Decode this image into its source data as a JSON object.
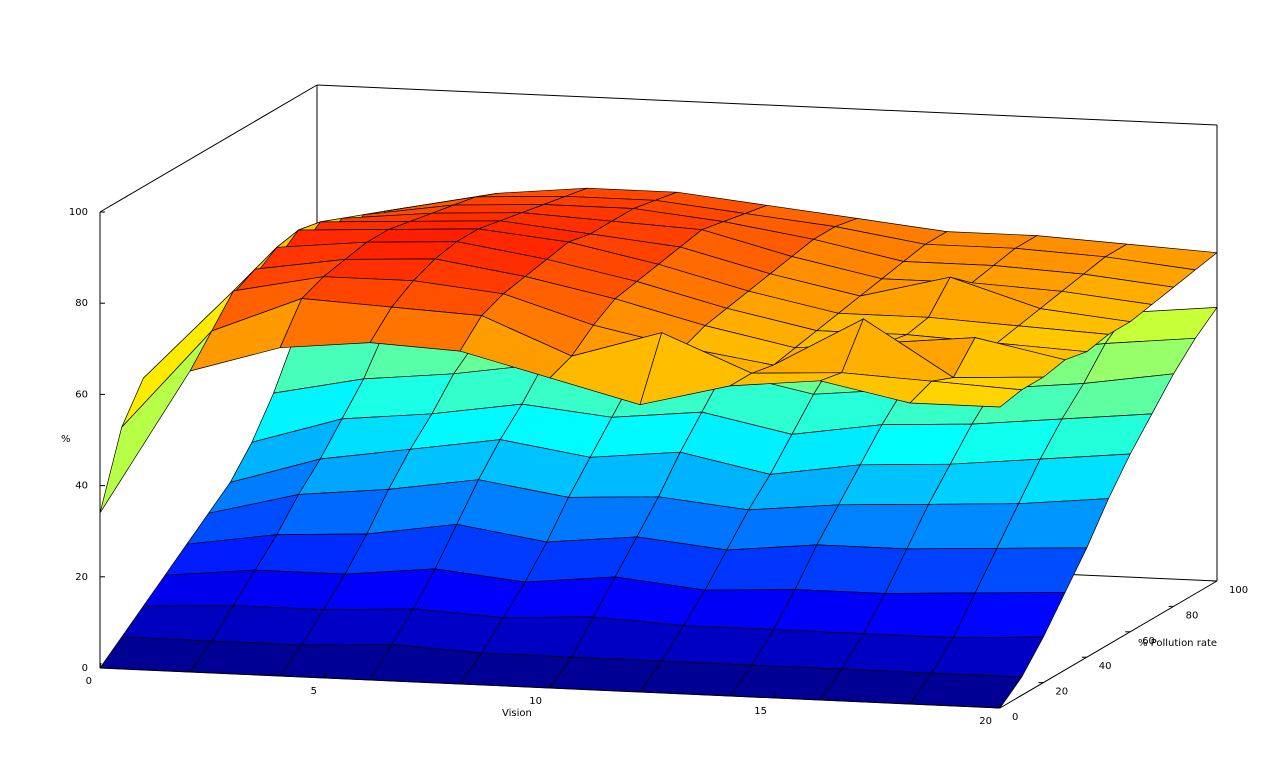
{
  "chart_data": {
    "type": "surface",
    "zlabel": "%",
    "xlabel": "Vision",
    "ylabel": "% Pollution rate",
    "xlim": [
      0,
      20
    ],
    "ylim": [
      0,
      100
    ],
    "zlim": [
      0,
      100
    ],
    "x_ticks": [
      "0",
      "5",
      "10",
      "15",
      "20"
    ],
    "y_ticks": [
      "0",
      "20",
      "40",
      "60",
      "80",
      "100"
    ],
    "z_ticks": [
      "0",
      "20",
      "40",
      "60",
      "80",
      "100"
    ],
    "x": [
      0,
      2,
      4,
      6,
      8,
      10,
      12,
      14,
      16,
      18,
      20
    ],
    "y": [
      0,
      10,
      20,
      30,
      40,
      50,
      60,
      70,
      80,
      90,
      100
    ],
    "series": [
      {
        "z": [
          [
            0,
            0,
            0,
            0,
            0,
            0,
            0,
            0,
            0,
            0,
            0
          ],
          [
            4,
            4,
            4,
            5,
            4,
            4,
            4,
            4,
            4,
            4,
            4
          ],
          [
            8,
            9,
            9,
            10,
            9,
            10,
            9,
            9,
            9,
            9,
            10
          ],
          [
            12,
            14,
            14,
            16,
            14,
            16,
            14,
            15,
            15,
            16,
            17
          ],
          [
            16,
            19,
            20,
            23,
            20,
            22,
            20,
            22,
            22,
            23,
            24
          ],
          [
            20,
            25,
            27,
            30,
            27,
            28,
            26,
            28,
            29,
            30,
            32
          ],
          [
            24,
            30,
            33,
            36,
            33,
            35,
            31,
            34,
            35,
            37,
            39
          ],
          [
            30,
            36,
            38,
            41,
            39,
            41,
            37,
            40,
            41,
            43,
            45
          ],
          [
            38,
            42,
            44,
            47,
            45,
            47,
            43,
            45,
            46,
            48,
            51
          ],
          [
            48,
            50,
            48,
            51,
            50,
            53,
            48,
            50,
            51,
            54,
            56
          ],
          [
            58,
            56,
            52,
            55,
            54,
            58,
            53,
            54,
            56,
            58,
            60
          ]
        ]
      },
      {
        "z": [
          [
            34,
            66,
            72,
            74,
            73,
            68,
            63,
            68,
            70,
            66,
            66
          ],
          [
            50,
            72,
            80,
            79,
            78,
            70,
            76,
            68,
            69,
            68,
            67
          ],
          [
            58,
            78,
            82,
            82,
            80,
            74,
            70,
            67,
            78,
            66,
            67
          ],
          [
            57,
            80,
            83,
            84,
            81,
            77,
            72,
            68,
            70,
            72,
            68
          ],
          [
            56,
            82,
            84,
            85,
            82,
            78,
            73,
            69,
            69,
            68,
            67
          ],
          [
            55,
            83,
            84,
            85,
            83,
            79,
            74,
            70,
            70,
            69,
            68
          ],
          [
            54,
            82,
            83,
            84,
            82,
            80,
            75,
            71,
            76,
            70,
            68
          ],
          [
            53,
            80,
            82,
            83,
            82,
            81,
            76,
            72,
            72,
            71,
            69
          ],
          [
            52,
            78,
            81,
            82,
            82,
            80,
            77,
            73,
            73,
            72,
            70
          ],
          [
            51,
            76,
            80,
            81,
            81,
            79,
            77,
            74,
            74,
            73,
            71
          ],
          [
            50,
            74,
            78,
            80,
            80,
            78,
            76,
            74,
            74,
            73,
            72
          ]
        ]
      }
    ],
    "colormap": "jet",
    "grid": false
  }
}
